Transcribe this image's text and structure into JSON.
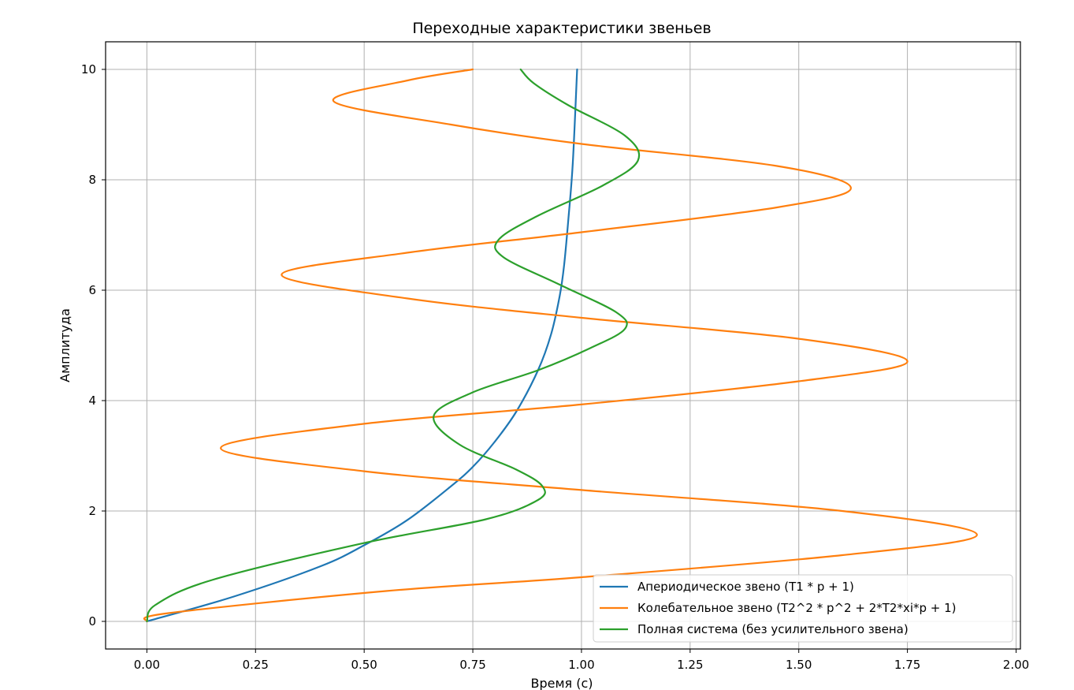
{
  "chart_data": {
    "type": "line",
    "title": "Переходные характеристики звеньев",
    "xlabel": "Время (с)",
    "ylabel": "Амплитуда",
    "xlim": [
      -0.095,
      2.01
    ],
    "ylim": [
      -0.5,
      10.5
    ],
    "xticks": [
      0.0,
      0.25,
      0.5,
      0.75,
      1.0,
      1.25,
      1.5,
      1.75,
      2.0
    ],
    "xtick_labels": [
      "0.00",
      "0.25",
      "0.50",
      "0.75",
      "1.00",
      "1.25",
      "1.50",
      "1.75",
      "2.00"
    ],
    "yticks": [
      0,
      2,
      4,
      6,
      8,
      10
    ],
    "ytick_labels": [
      "0",
      "2",
      "4",
      "6",
      "8",
      "10"
    ],
    "grid": true,
    "legend_position": "lower-right",
    "series": [
      {
        "name": "Апериодическое звено (T1 * p + 1)",
        "color": "#1f77b4",
        "points": [
          [
            0.0,
            0.0
          ],
          [
            0.2,
            0.45
          ],
          [
            0.4,
            1.0
          ],
          [
            0.5,
            1.38
          ],
          [
            0.6,
            1.84
          ],
          [
            0.7,
            2.45
          ],
          [
            0.75,
            2.8
          ],
          [
            0.8,
            3.25
          ],
          [
            0.85,
            3.8
          ],
          [
            0.9,
            4.55
          ],
          [
            0.93,
            5.2
          ],
          [
            0.95,
            5.9
          ],
          [
            0.96,
            6.45
          ],
          [
            0.97,
            7.3
          ],
          [
            0.98,
            8.3
          ],
          [
            0.99,
            10.0
          ]
        ]
      },
      {
        "name": "Колебательное звено (T2^2 * p^2 + 2*T2*xi*p + 1)",
        "color": "#ff7f0e",
        "points": [
          [
            0.0,
            0.0
          ],
          [
            0.05,
            0.15
          ],
          [
            0.55,
            0.55
          ],
          [
            1.0,
            0.8
          ],
          [
            1.6,
            1.2
          ],
          [
            1.91,
            1.57
          ],
          [
            1.6,
            2.0
          ],
          [
            1.0,
            2.38
          ],
          [
            0.5,
            2.72
          ],
          [
            0.17,
            3.14
          ],
          [
            0.5,
            3.58
          ],
          [
            1.0,
            3.93
          ],
          [
            1.5,
            4.35
          ],
          [
            1.75,
            4.71
          ],
          [
            1.5,
            5.12
          ],
          [
            1.0,
            5.5
          ],
          [
            0.6,
            5.85
          ],
          [
            0.31,
            6.28
          ],
          [
            0.6,
            6.68
          ],
          [
            1.0,
            7.05
          ],
          [
            1.45,
            7.5
          ],
          [
            1.62,
            7.85
          ],
          [
            1.45,
            8.25
          ],
          [
            1.0,
            8.65
          ],
          [
            0.7,
            9.0
          ],
          [
            0.43,
            9.42
          ],
          [
            0.6,
            9.8
          ],
          [
            0.75,
            10.0
          ]
        ]
      },
      {
        "name": "Полная система (без усилительного звена)",
        "color": "#2ca02c",
        "points": [
          [
            0.0,
            0.0
          ],
          [
            0.02,
            0.3
          ],
          [
            0.15,
            0.75
          ],
          [
            0.5,
            1.42
          ],
          [
            0.78,
            1.85
          ],
          [
            0.9,
            2.2
          ],
          [
            0.91,
            2.45
          ],
          [
            0.85,
            2.75
          ],
          [
            0.72,
            3.2
          ],
          [
            0.66,
            3.72
          ],
          [
            0.75,
            4.15
          ],
          [
            0.9,
            4.55
          ],
          [
            1.02,
            4.95
          ],
          [
            1.1,
            5.3
          ],
          [
            1.08,
            5.6
          ],
          [
            0.95,
            6.1
          ],
          [
            0.82,
            6.6
          ],
          [
            0.81,
            6.92
          ],
          [
            0.9,
            7.35
          ],
          [
            1.05,
            7.9
          ],
          [
            1.13,
            8.35
          ],
          [
            1.1,
            8.8
          ],
          [
            0.97,
            9.35
          ],
          [
            0.89,
            9.75
          ],
          [
            0.86,
            10.0
          ]
        ]
      }
    ]
  }
}
